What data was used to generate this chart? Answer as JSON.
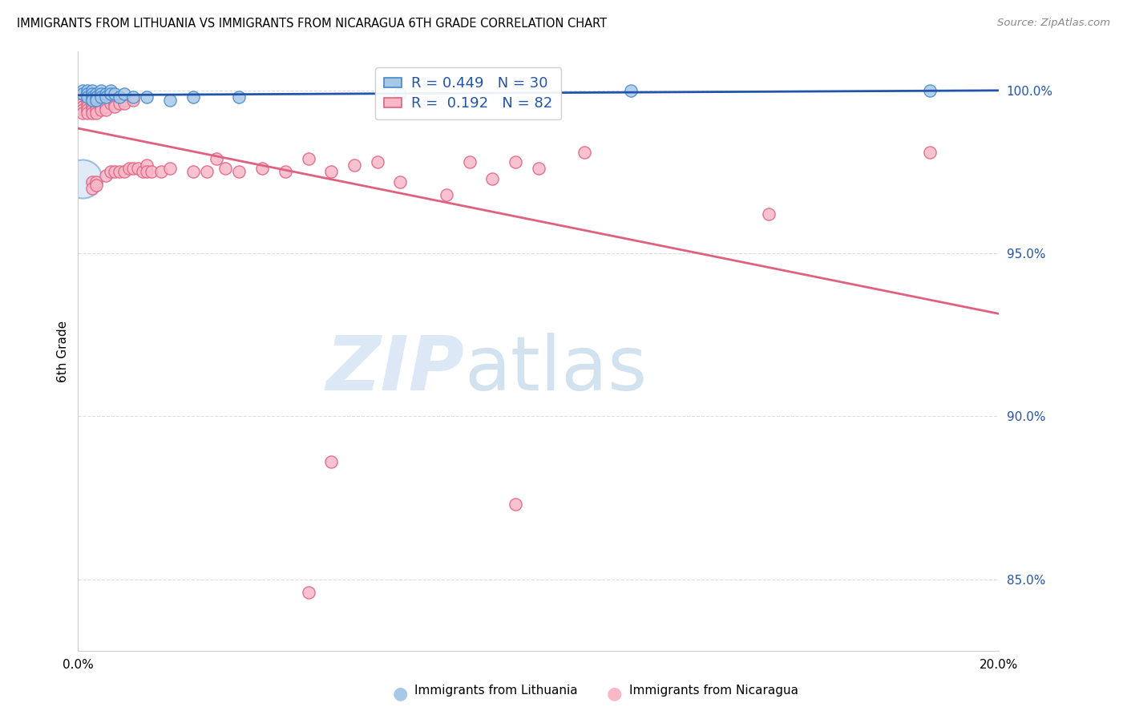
{
  "title": "IMMIGRANTS FROM LITHUANIA VS IMMIGRANTS FROM NICARAGUA 6TH GRADE CORRELATION CHART",
  "source": "Source: ZipAtlas.com",
  "ylabel": "6th Grade",
  "xmin": 0.0,
  "xmax": 0.2,
  "ymin": 0.828,
  "ymax": 1.012,
  "yticks": [
    0.85,
    0.9,
    0.95,
    1.0
  ],
  "ytick_labels": [
    "85.0%",
    "90.0%",
    "95.0%",
    "100.0%"
  ],
  "xticks": [
    0.0,
    0.05,
    0.1,
    0.15,
    0.2
  ],
  "xtick_labels": [
    "0.0%",
    "",
    "",
    "",
    "20.0%"
  ],
  "blue_R": 0.449,
  "blue_N": 30,
  "pink_R": 0.192,
  "pink_N": 82,
  "blue_color": "#a8c8e8",
  "blue_edge_color": "#4488cc",
  "blue_line_color": "#2255aa",
  "pink_color": "#f8b8c8",
  "pink_edge_color": "#e06080",
  "pink_line_color": "#e06080",
  "legend_text_color": "#2255aa",
  "watermark_color": "#cce0f5",
  "grid_color": "#dddddd",
  "blue_scatter": [
    [
      0.001,
      1.0
    ],
    [
      0.001,
      0.999
    ],
    [
      0.002,
      1.0
    ],
    [
      0.002,
      0.999
    ],
    [
      0.002,
      0.998
    ],
    [
      0.003,
      1.0
    ],
    [
      0.003,
      0.999
    ],
    [
      0.003,
      0.998
    ],
    [
      0.003,
      0.997
    ],
    [
      0.004,
      0.999
    ],
    [
      0.004,
      0.998
    ],
    [
      0.004,
      0.997
    ],
    [
      0.005,
      1.0
    ],
    [
      0.005,
      0.999
    ],
    [
      0.005,
      0.998
    ],
    [
      0.006,
      0.999
    ],
    [
      0.006,
      0.998
    ],
    [
      0.007,
      1.0
    ],
    [
      0.007,
      0.999
    ],
    [
      0.008,
      0.999
    ],
    [
      0.009,
      0.998
    ],
    [
      0.01,
      0.999
    ],
    [
      0.012,
      0.998
    ],
    [
      0.015,
      0.998
    ],
    [
      0.02,
      0.997
    ],
    [
      0.025,
      0.998
    ],
    [
      0.035,
      0.998
    ],
    [
      0.07,
      0.999
    ],
    [
      0.12,
      1.0
    ],
    [
      0.185,
      1.0
    ]
  ],
  "pink_scatter": [
    [
      0.001,
      0.999
    ],
    [
      0.001,
      0.998
    ],
    [
      0.001,
      0.997
    ],
    [
      0.001,
      0.996
    ],
    [
      0.001,
      0.995
    ],
    [
      0.001,
      0.994
    ],
    [
      0.001,
      0.993
    ],
    [
      0.002,
      0.999
    ],
    [
      0.002,
      0.998
    ],
    [
      0.002,
      0.997
    ],
    [
      0.002,
      0.996
    ],
    [
      0.002,
      0.995
    ],
    [
      0.002,
      0.994
    ],
    [
      0.002,
      0.993
    ],
    [
      0.003,
      0.998
    ],
    [
      0.003,
      0.997
    ],
    [
      0.003,
      0.996
    ],
    [
      0.003,
      0.995
    ],
    [
      0.003,
      0.994
    ],
    [
      0.003,
      0.993
    ],
    [
      0.003,
      0.972
    ],
    [
      0.003,
      0.97
    ],
    [
      0.004,
      0.997
    ],
    [
      0.004,
      0.996
    ],
    [
      0.004,
      0.995
    ],
    [
      0.004,
      0.994
    ],
    [
      0.004,
      0.993
    ],
    [
      0.004,
      0.972
    ],
    [
      0.004,
      0.971
    ],
    [
      0.005,
      0.998
    ],
    [
      0.005,
      0.996
    ],
    [
      0.005,
      0.995
    ],
    [
      0.005,
      0.994
    ],
    [
      0.006,
      0.997
    ],
    [
      0.006,
      0.996
    ],
    [
      0.006,
      0.995
    ],
    [
      0.006,
      0.994
    ],
    [
      0.006,
      0.974
    ],
    [
      0.007,
      0.997
    ],
    [
      0.007,
      0.996
    ],
    [
      0.007,
      0.975
    ],
    [
      0.008,
      0.996
    ],
    [
      0.008,
      0.995
    ],
    [
      0.008,
      0.975
    ],
    [
      0.009,
      0.996
    ],
    [
      0.009,
      0.975
    ],
    [
      0.01,
      0.997
    ],
    [
      0.01,
      0.996
    ],
    [
      0.01,
      0.975
    ],
    [
      0.011,
      0.976
    ],
    [
      0.012,
      0.997
    ],
    [
      0.012,
      0.976
    ],
    [
      0.013,
      0.976
    ],
    [
      0.014,
      0.975
    ],
    [
      0.015,
      0.977
    ],
    [
      0.015,
      0.975
    ],
    [
      0.016,
      0.975
    ],
    [
      0.018,
      0.975
    ],
    [
      0.02,
      0.976
    ],
    [
      0.025,
      0.975
    ],
    [
      0.028,
      0.975
    ],
    [
      0.03,
      0.979
    ],
    [
      0.032,
      0.976
    ],
    [
      0.035,
      0.975
    ],
    [
      0.04,
      0.976
    ],
    [
      0.045,
      0.975
    ],
    [
      0.05,
      0.979
    ],
    [
      0.055,
      0.975
    ],
    [
      0.06,
      0.977
    ],
    [
      0.065,
      0.978
    ],
    [
      0.07,
      0.972
    ],
    [
      0.08,
      0.968
    ],
    [
      0.085,
      0.978
    ],
    [
      0.09,
      0.973
    ],
    [
      0.095,
      0.978
    ],
    [
      0.1,
      0.976
    ],
    [
      0.11,
      0.981
    ],
    [
      0.15,
      0.962
    ],
    [
      0.185,
      0.981
    ],
    [
      0.055,
      0.886
    ],
    [
      0.095,
      0.873
    ],
    [
      0.05,
      0.846
    ]
  ],
  "big_blue_dot": [
    0.001,
    0.973
  ],
  "big_blue_dot_size": 1200
}
